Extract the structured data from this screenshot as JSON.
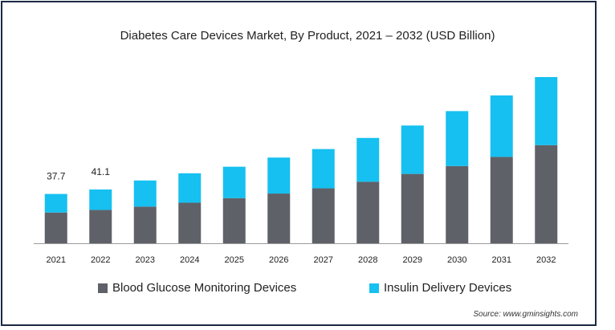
{
  "chart_data": {
    "type": "bar",
    "stacked": true,
    "title": "Diabetes Care Devices Market, By Product, 2021 – 2032 (USD Billion)",
    "categories": [
      "2021",
      "2022",
      "2023",
      "2024",
      "2025",
      "2026",
      "2027",
      "2028",
      "2029",
      "2030",
      "2031",
      "2032"
    ],
    "series": [
      {
        "name": "Blood Glucose Monitoring Devices",
        "color": "#5f6168",
        "values": [
          23.5,
          25.5,
          28,
          31,
          34.5,
          38,
          42,
          47,
          53,
          59,
          66,
          75
        ]
      },
      {
        "name": "Insulin Delivery Devices",
        "color": "#16c0f0",
        "values": [
          14.2,
          15.6,
          20,
          22.5,
          24,
          27.5,
          30,
          33.5,
          37,
          42,
          47,
          52
        ]
      }
    ],
    "data_labels": [
      "37.7",
      "41.1",
      null,
      null,
      null,
      null,
      null,
      null,
      null,
      null,
      null,
      null
    ],
    "ylim": [
      0,
      127
    ],
    "grid": false,
    "legend_position": "bottom"
  },
  "source": "Source: www.gminsights.com"
}
